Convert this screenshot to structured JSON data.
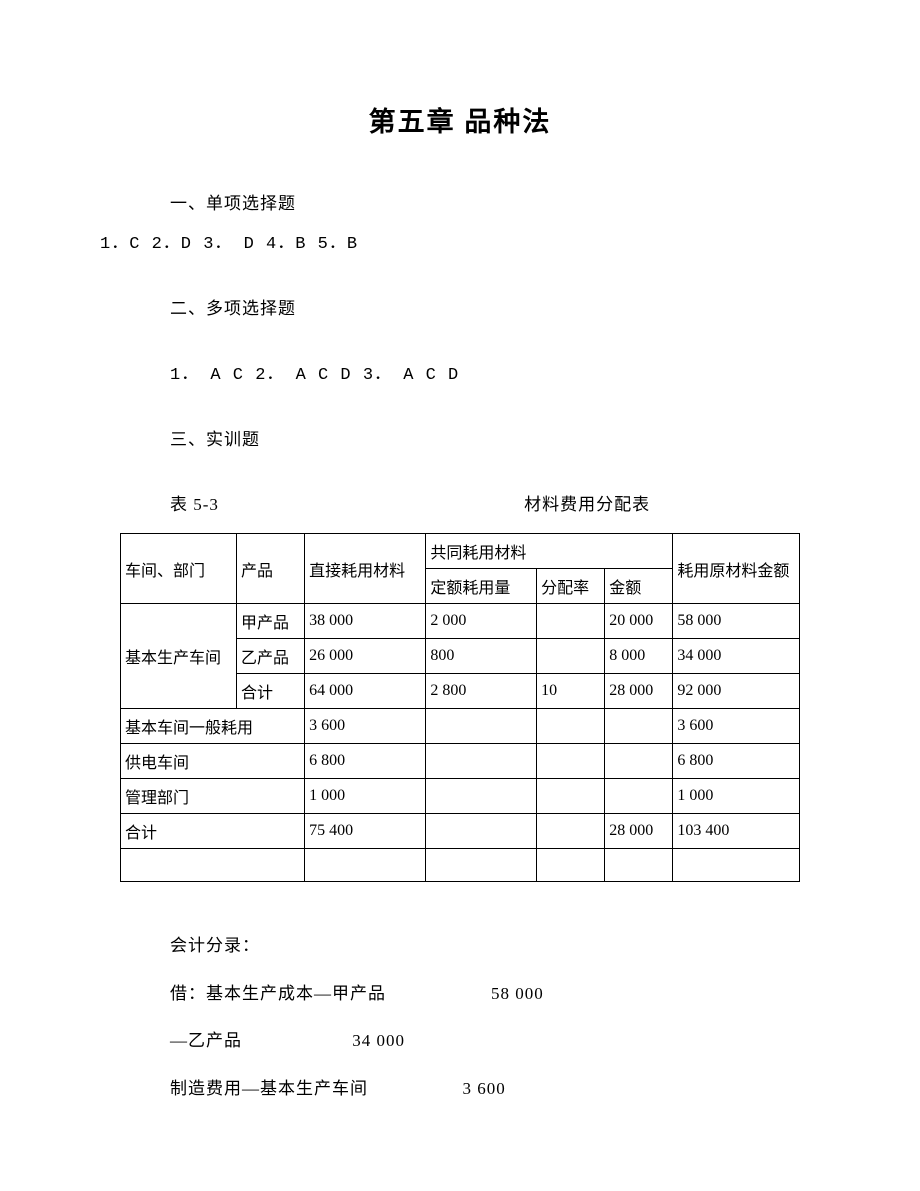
{
  "title": "第五章  品种法",
  "section1": {
    "heading": "一、单项选择题",
    "answers": "1．C         2．D            3． D    4．B    5．B"
  },
  "section2": {
    "heading": "二、多项选择题",
    "answers": "1． A C        2． A C D      3． A C D"
  },
  "section3": {
    "heading": "三、实训题"
  },
  "table_caption": {
    "left": "表 5-3",
    "right": "材料费用分配表"
  },
  "table": {
    "header": {
      "col1": "车间、部门",
      "col2": "产品",
      "col3": "直接耗用材料",
      "col4_group": "共同耗用材料",
      "col4": "定额耗用量",
      "col5": "分配率",
      "col6": "金额",
      "col7": "耗用原材料金额"
    },
    "rows": [
      {
        "c1": "",
        "c2": "甲产品",
        "c3": "38 000",
        "c4": "2 000",
        "c5": "",
        "c6": "20 000",
        "c7": "58 000"
      },
      {
        "c1": "基本生产车间",
        "c2": "乙产品",
        "c3": "26 000",
        "c4": "800",
        "c5": "",
        "c6": "8 000",
        "c7": "34 000"
      },
      {
        "c1": "",
        "c2": "合计",
        "c3": "64 000",
        "c4": "2 800",
        "c5": "10",
        "c6": "28 000",
        "c7": "92 000"
      },
      {
        "c1": "基本车间一般耗用",
        "c2": "",
        "c3": "3 600",
        "c4": "",
        "c5": "",
        "c6": "",
        "c7": "3 600"
      },
      {
        "c1": "供电车间",
        "c2": "",
        "c3": "6 800",
        "c4": "",
        "c5": "",
        "c6": "",
        "c7": "6 800"
      },
      {
        "c1": "管理部门",
        "c2": "",
        "c3": "1 000",
        "c4": "",
        "c5": "",
        "c6": "",
        "c7": "1 000"
      },
      {
        "c1": "合计",
        "c2": "",
        "c3": "75 400",
        "c4": "",
        "c5": "",
        "c6": "28 000",
        "c7": "103 400"
      }
    ]
  },
  "entries": {
    "heading": "会计分录：",
    "lines": [
      "借：基本生产成本—甲产品                    58 000",
      "—乙产品                     34 000",
      "制造费用—基本生产车间                  3 600"
    ]
  }
}
